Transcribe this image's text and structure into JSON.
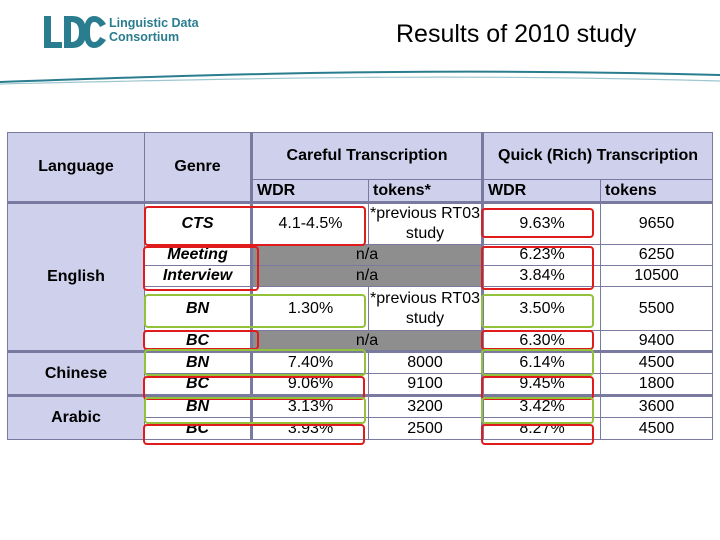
{
  "logo": {
    "line1": "Linguistic Data",
    "line2": "Consortium",
    "mark": "LDC"
  },
  "title": "Results of 2010 study",
  "table": {
    "headers": {
      "language": "Language",
      "genre": "Genre",
      "careful": "Careful Transcription",
      "quick": "Quick (Rich) Transcription",
      "wdr1": "WDR",
      "tokens1": "tokens*",
      "wdr2": "WDR",
      "tokens2": "tokens"
    },
    "rows": [
      {
        "language": "English",
        "genre": "CTS",
        "cwdr": "4.1-4.5%",
        "ctokens": "*previous RT03 study",
        "qwdr": "9.63%",
        "qtokens": "9650"
      },
      {
        "genre": "Meeting",
        "careful": "n/a",
        "qwdr": "6.23%",
        "qtokens": "6250"
      },
      {
        "genre": "Interview",
        "careful": "n/a",
        "qwdr": "3.84%",
        "qtokens": "10500"
      },
      {
        "genre": "BN",
        "cwdr": "1.30%",
        "ctokens": "*previous RT03 study",
        "qwdr": "3.50%",
        "qtokens": "5500"
      },
      {
        "genre": "BC",
        "careful": "n/a",
        "qwdr": "6.30%",
        "qtokens": "9400"
      },
      {
        "language": "Chinese",
        "genre": "BN",
        "cwdr": "7.40%",
        "ctokens": "8000",
        "qwdr": "6.14%",
        "qtokens": "4500"
      },
      {
        "genre": "BC",
        "cwdr": "9.06%",
        "ctokens": "9100",
        "qwdr": "9.45%",
        "qtokens": "1800"
      },
      {
        "language": "Arabic",
        "genre": "BN",
        "cwdr": "3.13%",
        "ctokens": "3200",
        "qwdr": "3.42%",
        "qtokens": "3600"
      },
      {
        "genre": "BC",
        "cwdr": "3.93%",
        "ctokens": "2500",
        "qwdr": "8.27%",
        "qtokens": "4500"
      }
    ]
  },
  "colors": {
    "header_bg": "#cfd1ec",
    "na_bg": "#8e8e8e",
    "red_highlight": "#e01b1b",
    "green_highlight": "#92c13a",
    "brand": "#2a7d8e"
  }
}
